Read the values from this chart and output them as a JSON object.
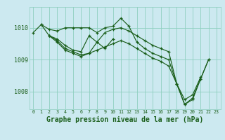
{
  "background_color": "#cce9f0",
  "grid_color": "#8fcfbf",
  "line_color": "#1a5e1a",
  "marker_color": "#1a5e1a",
  "xlabel": "Graphe pression niveau de la mer (hPa)",
  "xlabel_fontsize": 7.0,
  "xlabel_color": "#1a5e1a",
  "ytick_labels": [
    "1008",
    "1009",
    "1010"
  ],
  "ytick_values": [
    1008,
    1009,
    1010
  ],
  "xtick_values": [
    0,
    1,
    2,
    3,
    4,
    5,
    6,
    7,
    8,
    9,
    10,
    11,
    12,
    13,
    14,
    15,
    16,
    17,
    18,
    19,
    20,
    21,
    22,
    23
  ],
  "ylim": [
    1007.45,
    1010.65
  ],
  "xlim": [
    -0.5,
    23.5
  ],
  "series": [
    {
      "x": [
        0,
        1,
        2,
        3,
        4,
        5,
        6,
        7,
        8,
        9,
        10,
        11,
        12,
        13,
        14,
        15,
        16,
        17,
        18,
        19,
        20,
        21,
        22
      ],
      "y": [
        1009.85,
        1010.1,
        1009.95,
        1009.9,
        1010.0,
        1010.0,
        1010.0,
        1010.0,
        1009.85,
        1010.0,
        1010.05,
        1010.3,
        1010.05,
        1009.55,
        1009.35,
        1009.2,
        1009.1,
        1009.0,
        1008.25,
        1007.6,
        1007.8,
        1008.4,
        1009.0
      ]
    },
    {
      "x": [
        1,
        2,
        3,
        4,
        5,
        6,
        7,
        8,
        9,
        10
      ],
      "y": [
        1010.1,
        1009.75,
        1009.65,
        1009.45,
        1009.3,
        1009.25,
        1009.75,
        1009.55,
        1009.35,
        1009.65
      ]
    },
    {
      "x": [
        2,
        3,
        4,
        5,
        6,
        7,
        8,
        9,
        10,
        11,
        12,
        13,
        14,
        15,
        16,
        17,
        18,
        19,
        20,
        21
      ],
      "y": [
        1009.75,
        1009.55,
        1009.3,
        1009.2,
        1009.1,
        1009.2,
        1009.3,
        1009.4,
        1009.5,
        1009.6,
        1009.5,
        1009.35,
        1009.2,
        1009.05,
        1008.95,
        1008.8,
        1008.25,
        1007.75,
        1007.9,
        1008.45
      ]
    },
    {
      "x": [
        2,
        3,
        4,
        5,
        6,
        7,
        8,
        9,
        10,
        11,
        12,
        13,
        14,
        15,
        16,
        17,
        18,
        19,
        20,
        21,
        22
      ],
      "y": [
        1009.75,
        1009.6,
        1009.35,
        1009.25,
        1009.15,
        1009.2,
        1009.55,
        1009.85,
        1009.95,
        1010.0,
        1009.9,
        1009.75,
        1009.6,
        1009.45,
        1009.35,
        1009.25,
        1008.25,
        1007.6,
        1007.75,
        1008.4,
        1009.0
      ]
    }
  ],
  "fig_width": 3.2,
  "fig_height": 2.0,
  "dpi": 100
}
